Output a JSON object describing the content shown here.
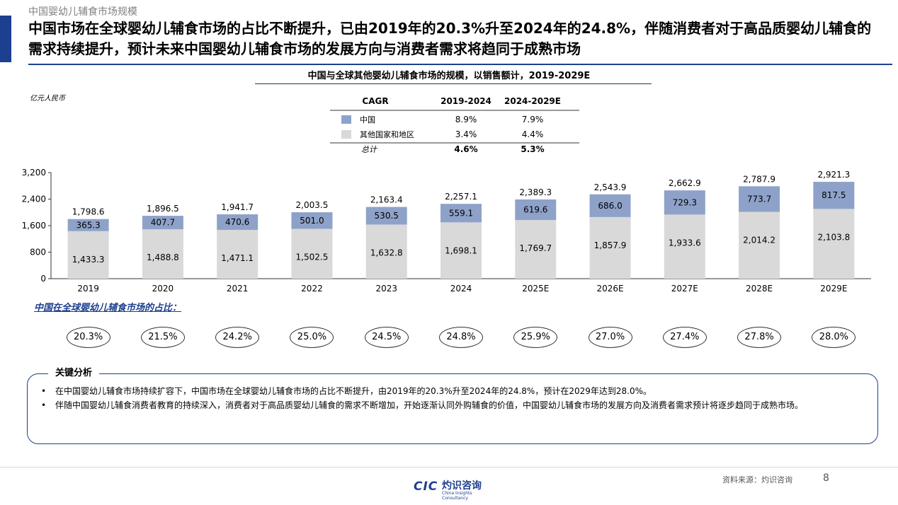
{
  "page": {
    "section_label": "中国婴幼儿辅食市场规模",
    "headline": "中国市场在全球婴幼儿辅食市场的占比不断提升，已由2019年的20.3%升至2024年的24.8%，伴随消费者对于高品质婴幼儿辅食的需求持续提升，预计未来中国婴幼儿辅食市场的发展方向与消费者需求将趋同于成熟市场",
    "page_number": "8",
    "source": "资料来源：灼识咨询",
    "logo_mark": "CIC",
    "logo_cn": "灼识咨询",
    "logo_en": "China Insights Consultancy"
  },
  "cagr_table": {
    "headers": [
      "CAGR",
      "2019-2024",
      "2024-2029E"
    ],
    "rows": [
      {
        "label": "中国",
        "v1": "8.9%",
        "v2": "7.9%",
        "color": "#8ea2c9"
      },
      {
        "label": "其他国家和地区",
        "v1": "3.4%",
        "v2": "4.4%",
        "color": "#d9d9d9"
      },
      {
        "label": "总计",
        "v1": "4.6%",
        "v2": "5.3%"
      }
    ]
  },
  "chart_data": {
    "type": "bar",
    "title": "中国与全球其他婴幼儿辅食市场的规模，以销售额计，2019-2029E",
    "unit": "亿元人民币",
    "stacked": true,
    "categories": [
      "2019",
      "2020",
      "2021",
      "2022",
      "2023",
      "2024",
      "2025E",
      "2026E",
      "2027E",
      "2028E",
      "2029E"
    ],
    "series": [
      {
        "name": "其他国家和地区",
        "color": "#d9d9d9",
        "values": [
          1433.3,
          1488.8,
          1471.1,
          1502.5,
          1632.8,
          1698.1,
          1769.7,
          1857.9,
          1933.6,
          2014.2,
          2103.8
        ],
        "labels": [
          "1,433.3",
          "1,488.8",
          "1,471.1",
          "1,502.5",
          "1,632.8",
          "1,698.1",
          "1,769.7",
          "1,857.9",
          "1,933.6",
          "2,014.2",
          "2,103.8"
        ]
      },
      {
        "name": "中国",
        "color": "#8ea2c9",
        "values": [
          365.3,
          407.7,
          470.6,
          501.0,
          530.5,
          559.1,
          619.6,
          686.0,
          729.3,
          773.7,
          817.5
        ],
        "labels": [
          "365.3",
          "407.7",
          "470.6",
          "501.0",
          "530.5",
          "559.1",
          "619.6",
          "686.0",
          "729.3",
          "773.7",
          "817.5"
        ]
      }
    ],
    "totals": [
      1798.6,
      1896.5,
      1941.7,
      2003.5,
      2163.4,
      2257.1,
      2389.3,
      2543.9,
      2662.9,
      2787.9,
      2921.3
    ],
    "total_labels": [
      "1,798.6",
      "1,896.5",
      "1,941.7",
      "2,003.5",
      "2,163.4",
      "2,257.1",
      "2,389.3",
      "2,543.9",
      "2,662.9",
      "2,787.9",
      "2,921.3"
    ],
    "ylim": [
      0,
      3200
    ],
    "yticks": [
      0,
      800,
      1600,
      2400,
      3200
    ],
    "ytick_labels": [
      "0",
      "800",
      "1,600",
      "2,400",
      "3,200"
    ],
    "grid": false,
    "legend": "top-center table"
  },
  "share": {
    "title": "中国在全球婴幼儿辅食市场的占比：",
    "values": [
      "20.3%",
      "21.5%",
      "24.2%",
      "25.0%",
      "24.5%",
      "24.8%",
      "25.9%",
      "27.0%",
      "27.4%",
      "27.8%",
      "28.0%"
    ]
  },
  "analysis": {
    "title": "关键分析",
    "bullet_mark": "•",
    "bullets": [
      "在中国婴幼儿辅食市场持续扩容下，中国市场在全球婴幼儿辅食市场的占比不断提升，由2019年的20.3%升至2024年的24.8%，预计在2029年达到28.0%。",
      "伴随中国婴幼儿辅食消费者教育的持续深入，消费者对于高品质婴幼儿辅食的需求不断增加，开始逐渐认同外购辅食的价值，中国婴幼儿辅食市场的发展方向及消费者需求预计将逐步趋同于成熟市场。"
    ]
  }
}
